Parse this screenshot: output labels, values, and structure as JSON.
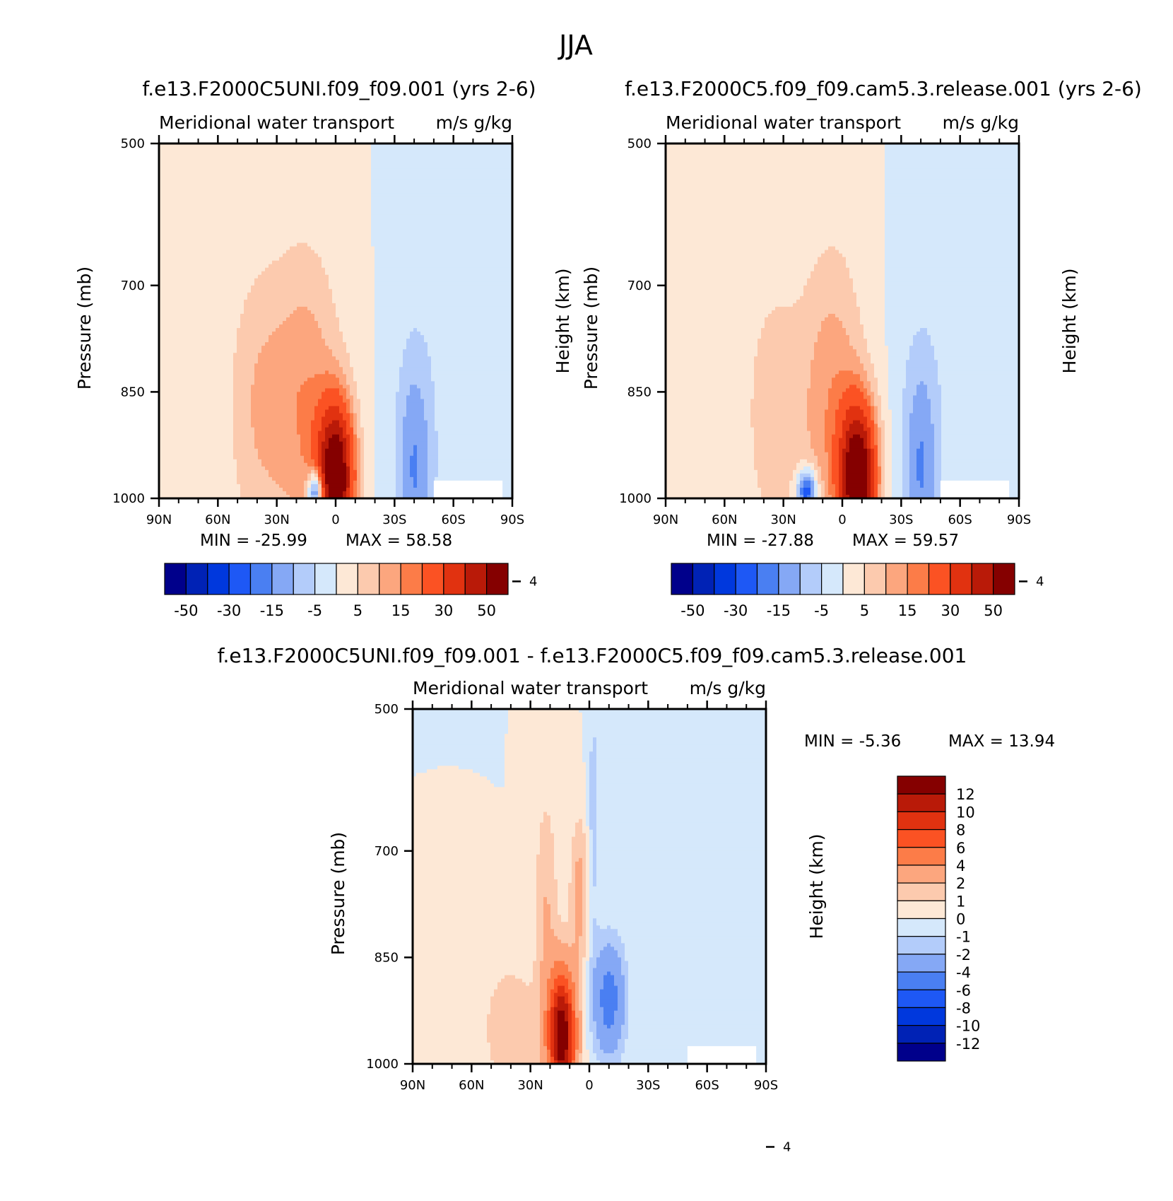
{
  "figure": {
    "title": "JJA",
    "colors": {
      "cmap": [
        "#00008b",
        "#0022b5",
        "#0038dd",
        "#1e58f5",
        "#4a7ff2",
        "#85a8f5",
        "#b3ccfa",
        "#d5e8fb",
        "#fde8d6",
        "#fccaae",
        "#fca67e",
        "#fc7c48",
        "#fb5223",
        "#e13210",
        "#b91a08",
        "#850000"
      ],
      "missing": "#ffffff"
    }
  },
  "chart_data": [
    {
      "id": "panel1",
      "type": "heatmap",
      "title": "f.e13.F2000C5UNI.f09_f09.001 (yrs 2-6)",
      "variable": "Meridional water transport",
      "units": "m/s g/kg",
      "xlabel": "",
      "ylabel": "Pressure (mb)",
      "y2label": "Height (km)",
      "x_ticks": [
        "90N",
        "60N",
        "30N",
        "0",
        "30S",
        "60S",
        "90S"
      ],
      "x_tick_values": [
        90,
        60,
        30,
        0,
        -30,
        -60,
        -90
      ],
      "xlim": [
        90,
        -90
      ],
      "y_ticks": [
        500,
        700,
        850,
        1000
      ],
      "ylim": [
        1000,
        500
      ],
      "y2_ticks": [
        4
      ],
      "min_label": "MIN = -25.99",
      "max_label": "MAX = 58.58",
      "min": -25.99,
      "max": 58.58,
      "levels": [
        -60,
        -50,
        -40,
        -30,
        -20,
        -15,
        -10,
        -5,
        0,
        5,
        10,
        15,
        20,
        30,
        40,
        50,
        60
      ],
      "colorbar_labels": [
        "-50",
        "-30",
        "-15",
        "-5",
        "5",
        "15",
        "30",
        "50"
      ],
      "features": [
        {
          "lat": 0,
          "p": 970,
          "sx": 9,
          "sp": 100,
          "amp": 62
        },
        {
          "lat": 15,
          "p": 870,
          "sx": 18,
          "sp": 220,
          "amp": 14
        },
        {
          "lat": 40,
          "p": 870,
          "sx": 16,
          "sp": 200,
          "amp": 9
        },
        {
          "lat": 10,
          "p": 990,
          "sx": 4,
          "sp": 30,
          "amp": -38
        },
        {
          "lat": -40,
          "p": 960,
          "sx": 9,
          "sp": 160,
          "amp": -13
        },
        {
          "lat": -45,
          "p": 880,
          "sx": 18,
          "sp": 240,
          "amp": -3
        }
      ]
    },
    {
      "id": "panel2",
      "type": "heatmap",
      "title": "f.e13.F2000C5.f09_f09.cam5.3.release.001 (yrs 2-6)",
      "variable": "Meridional water transport",
      "units": "m/s g/kg",
      "xlabel": "",
      "ylabel": "Pressure (mb)",
      "y2label": "Height (km)",
      "x_ticks": [
        "90N",
        "60N",
        "30N",
        "0",
        "30S",
        "60S",
        "90S"
      ],
      "x_tick_values": [
        90,
        60,
        30,
        0,
        -30,
        -60,
        -90
      ],
      "xlim": [
        90,
        -90
      ],
      "y_ticks": [
        500,
        700,
        850,
        1000
      ],
      "ylim": [
        1000,
        500
      ],
      "y2_ticks": [
        4
      ],
      "min_label": "MIN = -27.88",
      "max_label": "MAX = 59.57",
      "min": -27.88,
      "max": 59.57,
      "levels": [
        -60,
        -50,
        -40,
        -30,
        -20,
        -15,
        -10,
        -5,
        0,
        5,
        10,
        15,
        20,
        30,
        40,
        50,
        60
      ],
      "colorbar_labels": [
        "-50",
        "-30",
        "-15",
        "-5",
        "5",
        "15",
        "30",
        "50"
      ],
      "features": [
        {
          "lat": -8,
          "p": 970,
          "sx": 9,
          "sp": 100,
          "amp": 63
        },
        {
          "lat": 5,
          "p": 870,
          "sx": 16,
          "sp": 220,
          "amp": 14
        },
        {
          "lat": 35,
          "p": 880,
          "sx": 16,
          "sp": 200,
          "amp": 8
        },
        {
          "lat": 18,
          "p": 990,
          "sx": 5,
          "sp": 30,
          "amp": -30
        },
        {
          "lat": -40,
          "p": 960,
          "sx": 9,
          "sp": 160,
          "amp": -13
        },
        {
          "lat": -43,
          "p": 880,
          "sx": 18,
          "sp": 240,
          "amp": -3
        }
      ]
    },
    {
      "id": "panel3",
      "type": "heatmap",
      "title": "f.e13.F2000C5UNI.f09_f09.001 - f.e13.F2000C5.f09_f09.cam5.3.release.001",
      "variable": "Meridional water transport",
      "units": "m/s g/kg",
      "xlabel": "",
      "ylabel": "Pressure (mb)",
      "y2label": "Height (km)",
      "x_ticks": [
        "90N",
        "60N",
        "30N",
        "0",
        "30S",
        "60S",
        "90S"
      ],
      "x_tick_values": [
        90,
        60,
        30,
        0,
        -30,
        -60,
        -90
      ],
      "xlim": [
        90,
        -90
      ],
      "y_ticks": [
        500,
        700,
        850,
        1000
      ],
      "ylim": [
        1000,
        500
      ],
      "y2_ticks": [
        4
      ],
      "min_label": "MIN = -5.36",
      "max_label": "MAX = 13.94",
      "min": -5.36,
      "max": 13.94,
      "levels": [
        -14,
        -12,
        -10,
        -8,
        -6,
        -4,
        -2,
        -1,
        0,
        1,
        2,
        4,
        6,
        8,
        10,
        12,
        14
      ],
      "colorbar_labels": [
        "12",
        "10",
        "8",
        "6",
        "4",
        "2",
        "1",
        "0",
        "-1",
        "-2",
        "-4",
        "-6",
        "-8",
        "-10",
        "-12"
      ],
      "features": [
        {
          "lat": 14,
          "p": 960,
          "sx": 7,
          "sp": 90,
          "amp": 14
        },
        {
          "lat": 5,
          "p": 760,
          "sx": 5,
          "sp": 110,
          "amp": 2.5
        },
        {
          "lat": 22,
          "p": 780,
          "sx": 6,
          "sp": 160,
          "amp": 2
        },
        {
          "lat": 40,
          "p": 950,
          "sx": 14,
          "sp": 90,
          "amp": 2
        },
        {
          "lat": -10,
          "p": 910,
          "sx": 8,
          "sp": 80,
          "amp": -5
        },
        {
          "lat": -2,
          "p": 660,
          "sx": 3,
          "sp": 200,
          "amp": -1.5
        },
        {
          "lat": -55,
          "p": 760,
          "sx": 28,
          "sp": 250,
          "amp": -0.8
        }
      ]
    }
  ]
}
